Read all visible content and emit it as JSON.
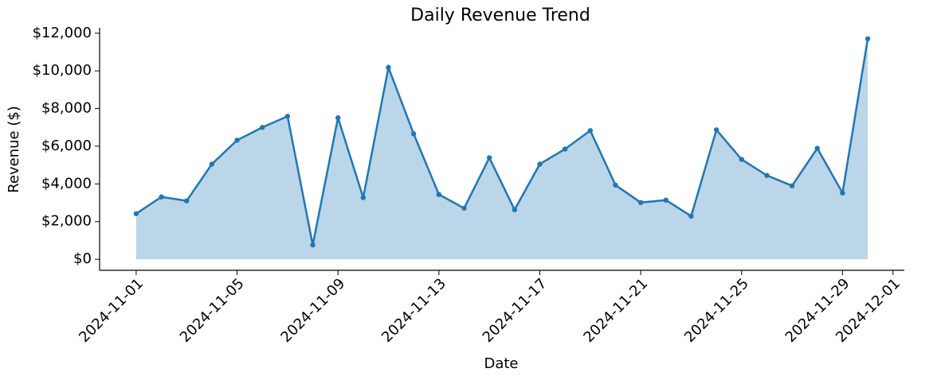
{
  "chart_data": {
    "type": "line",
    "title": "Daily Revenue Trend",
    "x_label": "Date",
    "y_label": "Revenue ($)",
    "x": [
      "2024-11-01",
      "2024-11-02",
      "2024-11-03",
      "2024-11-04",
      "2024-11-05",
      "2024-11-06",
      "2024-11-07",
      "2024-11-08",
      "2024-11-09",
      "2024-11-10",
      "2024-11-11",
      "2024-11-12",
      "2024-11-13",
      "2024-11-14",
      "2024-11-15",
      "2024-11-16",
      "2024-11-17",
      "2024-11-18",
      "2024-11-19",
      "2024-11-20",
      "2024-11-21",
      "2024-11-22",
      "2024-11-23",
      "2024-11-24",
      "2024-11-25",
      "2024-11-26",
      "2024-11-27",
      "2024-11-28",
      "2024-11-29",
      "2024-11-30"
    ],
    "values": [
      2420,
      3310,
      3100,
      5050,
      6320,
      7000,
      7590,
      760,
      7510,
      3270,
      10180,
      6660,
      3440,
      2710,
      5390,
      2630,
      5050,
      5850,
      6830,
      3940,
      3010,
      3140,
      2290,
      6870,
      5300,
      4450,
      3900,
      5890,
      3520,
      11700
    ],
    "color": "#1f77b4",
    "fill": true,
    "xlim": [
      "2024-10-30T13:12:00Z",
      "2024-12-01T10:48:00Z"
    ],
    "xticks": [
      "2024-11-01",
      "2024-11-05",
      "2024-11-09",
      "2024-11-13",
      "2024-11-17",
      "2024-11-21",
      "2024-11-25",
      "2024-11-29",
      "2024-12-01"
    ],
    "ylim": [
      -585,
      12285
    ],
    "yticks": [
      {
        "value": 0,
        "label": "$0"
      },
      {
        "value": 2000,
        "label": "$2,000"
      },
      {
        "value": 4000,
        "label": "$4,000"
      },
      {
        "value": 6000,
        "label": "$6,000"
      },
      {
        "value": 8000,
        "label": "$8,000"
      },
      {
        "value": 10000,
        "label": "$10,000"
      },
      {
        "value": 12000,
        "label": "$12,000"
      }
    ],
    "grid": false
  }
}
